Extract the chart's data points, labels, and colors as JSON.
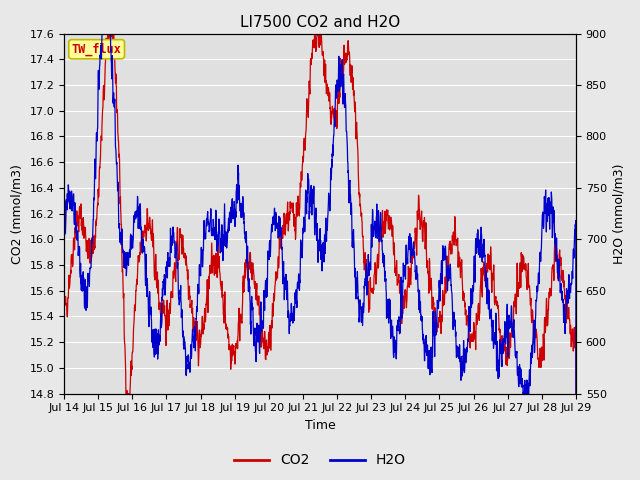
{
  "title": "LI7500 CO2 and H2O",
  "xlabel": "Time",
  "ylabel_left": "CO2 (mmol/m3)",
  "ylabel_right": "H2O (mmol/m3)",
  "ylim_left": [
    14.8,
    17.6
  ],
  "ylim_right": [
    550,
    900
  ],
  "yticks_left": [
    14.8,
    15.0,
    15.2,
    15.4,
    15.6,
    15.8,
    16.0,
    16.2,
    16.4,
    16.6,
    16.8,
    17.0,
    17.2,
    17.4,
    17.6
  ],
  "yticks_right": [
    550,
    600,
    650,
    700,
    750,
    800,
    850,
    900
  ],
  "xtick_labels": [
    "Jul 14",
    "Jul 15",
    "Jul 16",
    "Jul 17",
    "Jul 18",
    "Jul 19",
    "Jul 20",
    "Jul 21",
    "Jul 22",
    "Jul 23",
    "Jul 24",
    "Jul 25",
    "Jul 26",
    "Jul 27",
    "Jul 28",
    "Jul 29"
  ],
  "co2_color": "#cc0000",
  "h2o_color": "#0000cc",
  "background_color": "#e8e8e8",
  "plot_bg_color": "#e0e0e0",
  "grid_color": "#ffffff",
  "annotation_text": "TW_flux",
  "annotation_color": "#cc0000",
  "annotation_bg": "#ffff99",
  "annotation_border": "#bbbb00",
  "title_fontsize": 11,
  "axis_fontsize": 9,
  "tick_fontsize": 8,
  "linewidth": 0.9
}
